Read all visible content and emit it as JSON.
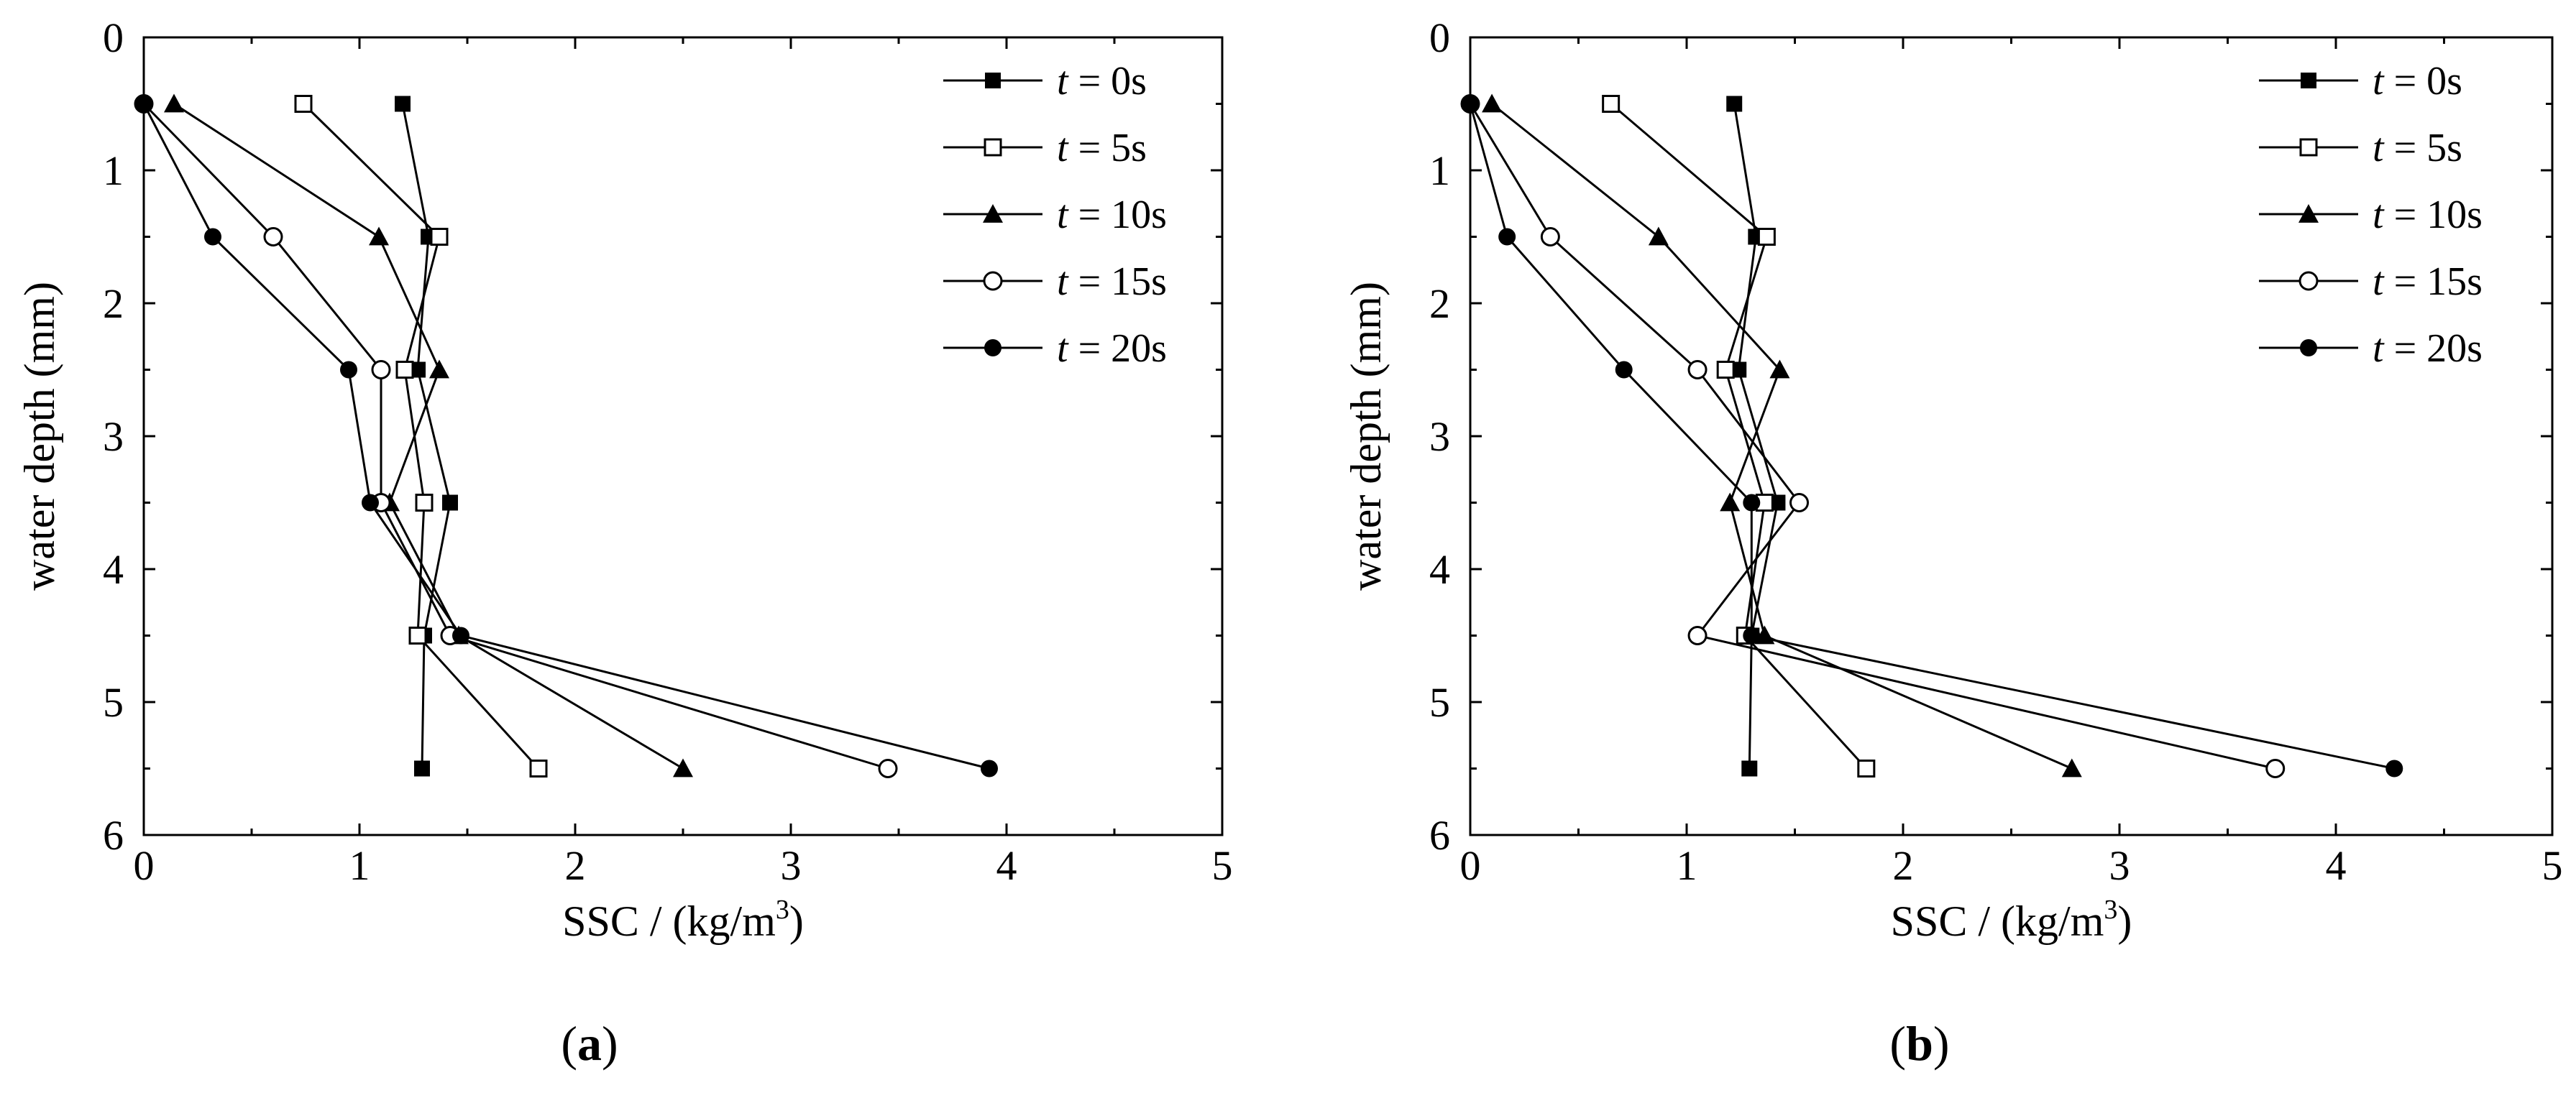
{
  "chart_data": [
    {
      "type": "line",
      "panel_label": "a",
      "xlabel": "SSC / (kg/m",
      "xlabel_sup": "3",
      "xlabel_close": ")",
      "ylabel": "water depth (mm)",
      "xlim": [
        0,
        5
      ],
      "ylim": [
        0,
        6
      ],
      "y_inverted": true,
      "xticks": [
        "0",
        "1",
        "2",
        "3",
        "4",
        "5"
      ],
      "yticks": [
        "0",
        "1",
        "2",
        "3",
        "4",
        "5",
        "6"
      ],
      "legend_position": "top-right",
      "series": [
        {
          "name": "0s",
          "marker": "square-filled",
          "points": [
            [
              1.2,
              0.5
            ],
            [
              1.32,
              1.5
            ],
            [
              1.27,
              2.5
            ],
            [
              1.42,
              3.5
            ],
            [
              1.3,
              4.5
            ],
            [
              1.29,
              5.5
            ]
          ]
        },
        {
          "name": "5s",
          "marker": "square-open",
          "points": [
            [
              0.74,
              0.5
            ],
            [
              1.37,
              1.5
            ],
            [
              1.21,
              2.5
            ],
            [
              1.3,
              3.5
            ],
            [
              1.27,
              4.5
            ],
            [
              1.83,
              5.5
            ]
          ]
        },
        {
          "name": "10s",
          "marker": "triangle-filled",
          "points": [
            [
              0.14,
              0.5
            ],
            [
              1.09,
              1.5
            ],
            [
              1.37,
              2.5
            ],
            [
              1.14,
              3.5
            ],
            [
              1.46,
              4.5
            ],
            [
              2.5,
              5.5
            ]
          ]
        },
        {
          "name": "15s",
          "marker": "circle-open",
          "points": [
            [
              0.0,
              0.5
            ],
            [
              0.6,
              1.5
            ],
            [
              1.1,
              2.5
            ],
            [
              1.1,
              3.5
            ],
            [
              1.42,
              4.5
            ],
            [
              3.45,
              5.5
            ]
          ]
        },
        {
          "name": "20s",
          "marker": "circle-filled",
          "points": [
            [
              0.0,
              0.5
            ],
            [
              0.32,
              1.5
            ],
            [
              0.95,
              2.5
            ],
            [
              1.05,
              3.5
            ],
            [
              1.47,
              4.5
            ],
            [
              3.92,
              5.5
            ]
          ]
        }
      ]
    },
    {
      "type": "line",
      "panel_label": "b",
      "xlabel": "SSC / (kg/m",
      "xlabel_sup": "3",
      "xlabel_close": ")",
      "ylabel": "water depth (mm)",
      "xlim": [
        0,
        5
      ],
      "ylim": [
        0,
        6
      ],
      "y_inverted": true,
      "xticks": [
        "0",
        "1",
        "2",
        "3",
        "4",
        "5"
      ],
      "yticks": [
        "0",
        "1",
        "2",
        "3",
        "4",
        "5",
        "6"
      ],
      "legend_position": "top-right",
      "series": [
        {
          "name": "0s",
          "marker": "square-filled",
          "points": [
            [
              1.22,
              0.5
            ],
            [
              1.32,
              1.5
            ],
            [
              1.24,
              2.5
            ],
            [
              1.42,
              3.5
            ],
            [
              1.3,
              4.5
            ],
            [
              1.29,
              5.5
            ]
          ]
        },
        {
          "name": "5s",
          "marker": "square-open",
          "points": [
            [
              0.65,
              0.5
            ],
            [
              1.37,
              1.5
            ],
            [
              1.18,
              2.5
            ],
            [
              1.36,
              3.5
            ],
            [
              1.27,
              4.5
            ],
            [
              1.83,
              5.5
            ]
          ]
        },
        {
          "name": "10s",
          "marker": "triangle-filled",
          "points": [
            [
              0.1,
              0.5
            ],
            [
              0.87,
              1.5
            ],
            [
              1.43,
              2.5
            ],
            [
              1.2,
              3.5
            ],
            [
              1.36,
              4.5
            ],
            [
              2.78,
              5.5
            ]
          ]
        },
        {
          "name": "15s",
          "marker": "circle-open",
          "points": [
            [
              0.0,
              0.5
            ],
            [
              0.37,
              1.5
            ],
            [
              1.05,
              2.5
            ],
            [
              1.52,
              3.5
            ],
            [
              1.05,
              4.5
            ],
            [
              3.72,
              5.5
            ]
          ]
        },
        {
          "name": "20s",
          "marker": "circle-filled",
          "points": [
            [
              0.0,
              0.5
            ],
            [
              0.17,
              1.5
            ],
            [
              0.71,
              2.5
            ],
            [
              1.3,
              3.5
            ],
            [
              1.3,
              4.5
            ],
            [
              4.27,
              5.5
            ]
          ]
        }
      ]
    }
  ],
  "legend_var": "t",
  "legend_eq": " = "
}
